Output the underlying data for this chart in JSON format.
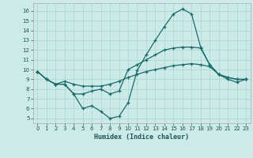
{
  "bg_color": "#cceae8",
  "line_color": "#1a6b6b",
  "grid_color": "#b0d8d5",
  "xlabel": "Humidex (Indice chaleur)",
  "xlim": [
    -0.5,
    23.5
  ],
  "ylim": [
    4.5,
    16.8
  ],
  "yticks": [
    5,
    6,
    7,
    8,
    9,
    10,
    11,
    12,
    13,
    14,
    15,
    16
  ],
  "xticks": [
    0,
    1,
    2,
    3,
    4,
    5,
    6,
    7,
    8,
    9,
    10,
    11,
    12,
    13,
    14,
    15,
    16,
    17,
    18,
    19,
    20,
    21,
    22,
    23
  ],
  "line1_x": [
    0,
    1,
    2,
    3,
    4,
    5,
    6,
    7,
    8,
    9,
    10,
    11,
    12,
    13,
    14,
    15,
    16,
    17,
    18,
    19,
    20,
    21,
    22,
    23
  ],
  "line1_y": [
    9.8,
    9.0,
    8.5,
    8.5,
    7.5,
    6.0,
    6.3,
    5.7,
    5.0,
    5.2,
    6.6,
    9.9,
    11.5,
    13.0,
    14.4,
    15.7,
    16.2,
    15.7,
    12.3,
    10.5,
    9.5,
    9.0,
    8.7,
    9.0
  ],
  "line2_x": [
    0,
    1,
    2,
    3,
    4,
    5,
    6,
    7,
    8,
    9,
    10,
    11,
    12,
    13,
    14,
    15,
    16,
    17,
    18,
    19,
    20,
    21,
    22,
    23
  ],
  "line2_y": [
    9.8,
    9.0,
    8.5,
    8.5,
    7.5,
    7.5,
    7.8,
    8.0,
    7.5,
    7.8,
    10.0,
    10.5,
    11.0,
    11.5,
    12.0,
    12.2,
    12.3,
    12.3,
    12.2,
    10.5,
    9.5,
    9.2,
    9.0,
    9.0
  ],
  "line3_x": [
    0,
    1,
    2,
    3,
    4,
    5,
    6,
    7,
    8,
    9,
    10,
    11,
    12,
    13,
    14,
    15,
    16,
    17,
    18,
    19,
    20,
    21,
    22,
    23
  ],
  "line3_y": [
    9.8,
    9.0,
    8.5,
    8.8,
    8.5,
    8.3,
    8.3,
    8.3,
    8.5,
    8.8,
    9.2,
    9.5,
    9.8,
    10.0,
    10.2,
    10.4,
    10.5,
    10.6,
    10.5,
    10.3,
    9.5,
    9.2,
    9.0,
    9.0
  ]
}
